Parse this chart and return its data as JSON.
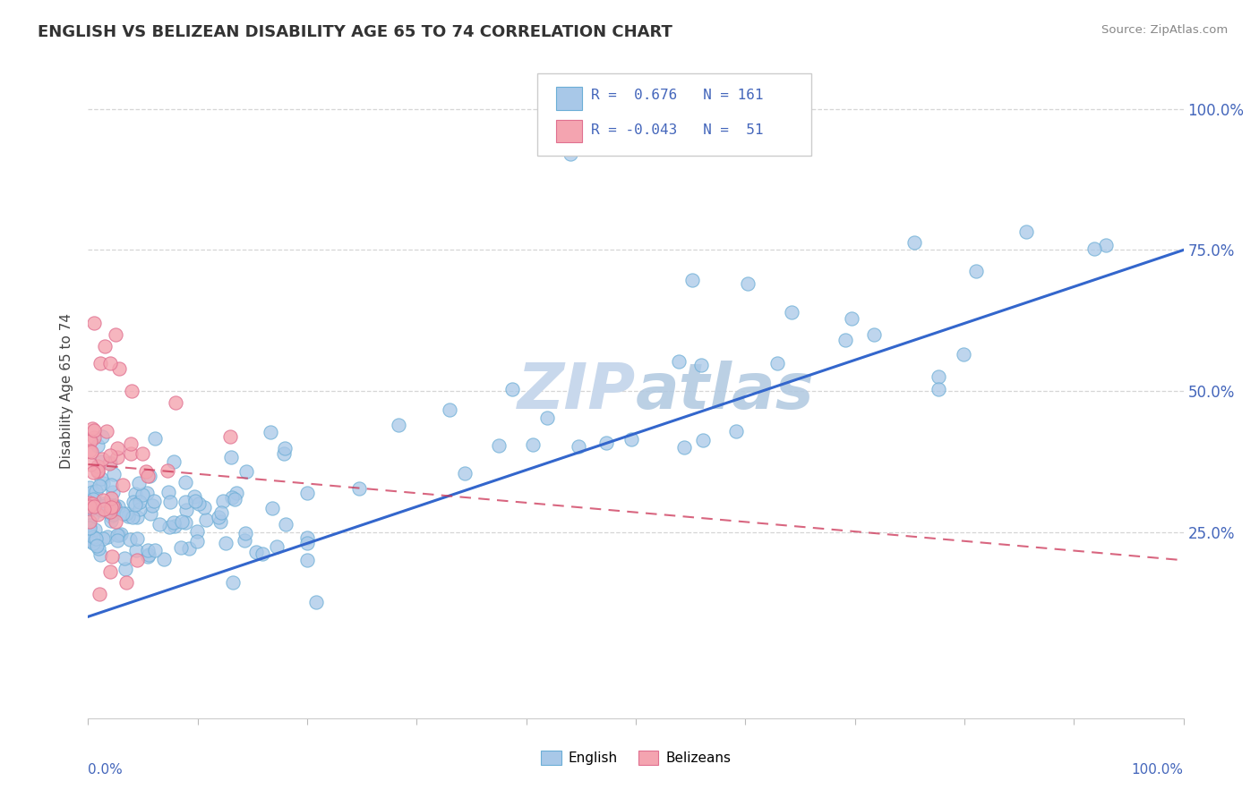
{
  "title": "ENGLISH VS BELIZEAN DISABILITY AGE 65 TO 74 CORRELATION CHART",
  "source": "Source: ZipAtlas.com",
  "ylabel": "Disability Age 65 to 74",
  "r_english": 0.676,
  "n_english": 161,
  "r_belizean": -0.043,
  "n_belizean": 51,
  "english_color": "#a8c8e8",
  "english_edge_color": "#6baed6",
  "belizean_color": "#f4a4b0",
  "belizean_edge_color": "#e07090",
  "english_line_color": "#3366cc",
  "belizean_line_color": "#cc3355",
  "watermark_color": "#c8d8ec",
  "background_color": "#ffffff",
  "grid_color": "#cccccc",
  "axis_label_color": "#4466bb",
  "title_color": "#333333",
  "source_color": "#888888",
  "ytick_labels": [
    "25.0%",
    "50.0%",
    "75.0%",
    "100.0%"
  ],
  "ytick_positions": [
    0.25,
    0.5,
    0.75,
    1.0
  ],
  "xlim": [
    0.0,
    1.0
  ],
  "ylim": [
    -0.08,
    1.08
  ]
}
